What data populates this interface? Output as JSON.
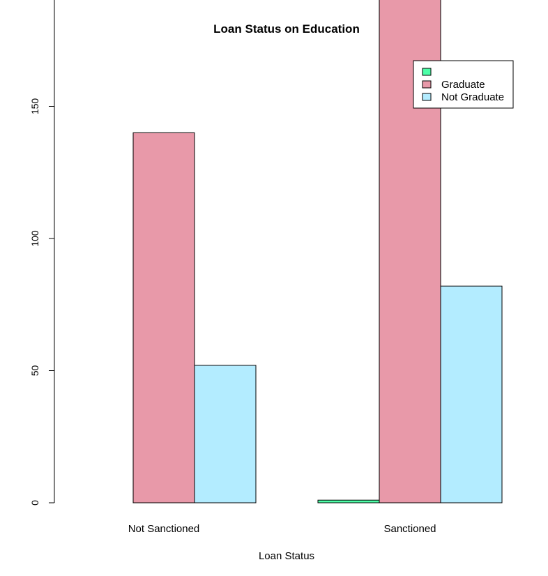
{
  "chart_data": {
    "type": "bar",
    "title": "Loan Status on Education",
    "xlabel": "Loan Status",
    "ylabel": "",
    "categories": [
      "Not Sanctioned",
      "Sanctioned"
    ],
    "series": [
      {
        "name": "",
        "values": [
          0,
          1
        ],
        "color": "#4DFFA8"
      },
      {
        "name": "Graduate",
        "values": [
          140,
          340
        ],
        "color": "#E899A9"
      },
      {
        "name": "Not Graduate",
        "values": [
          52,
          82
        ],
        "color": "#B3ECFF"
      }
    ],
    "ylim": [
      0,
      340
    ],
    "yticks": [
      "0",
      "50",
      "100",
      "150",
      "200",
      "250",
      "300"
    ],
    "grid": false,
    "legend": "top-right",
    "bar_mode": "grouped"
  }
}
